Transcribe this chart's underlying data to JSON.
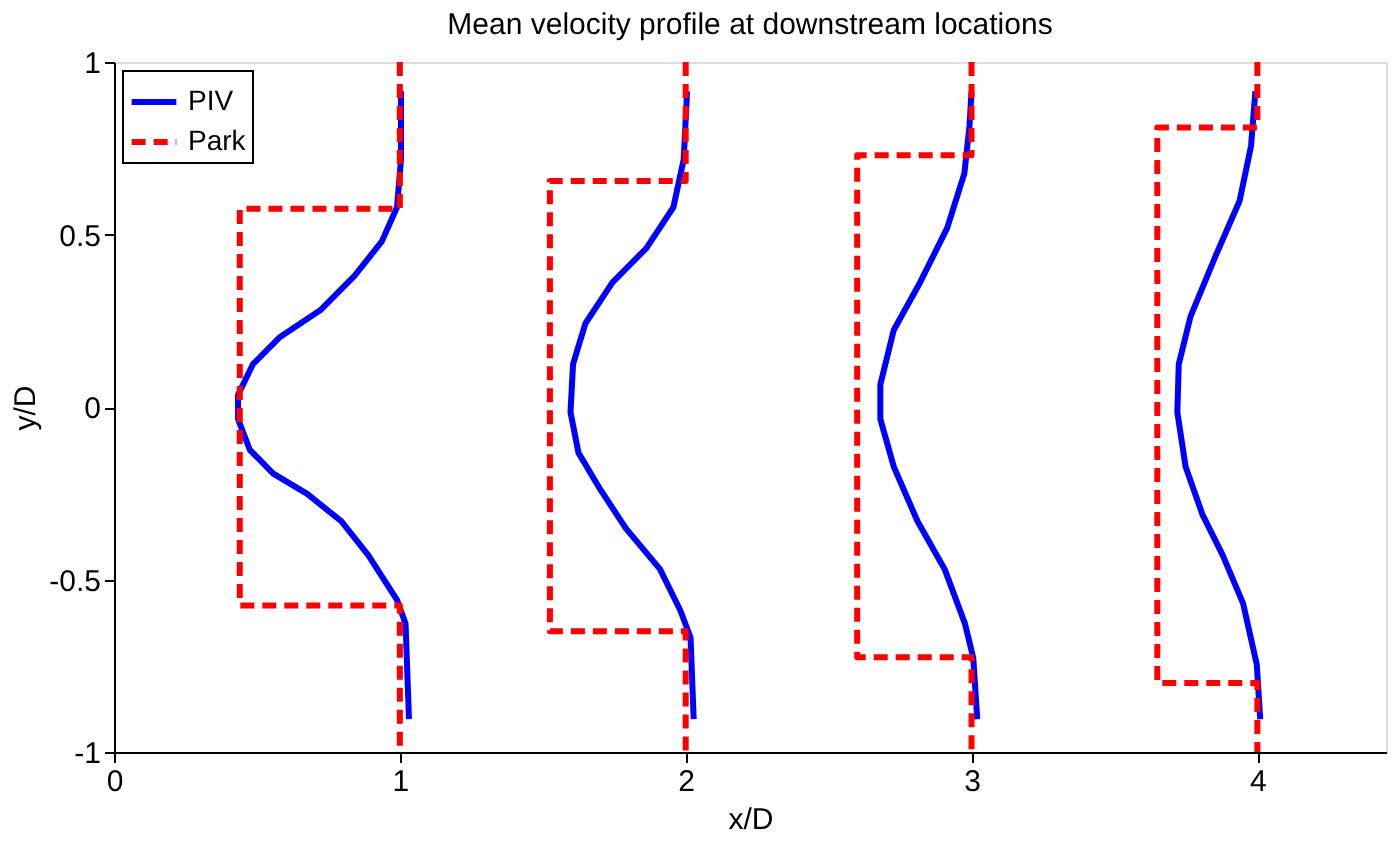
{
  "chart_data": {
    "type": "line",
    "title": "Mean velocity profile at downstream locations",
    "xlabel": "x/D",
    "ylabel": "y/D",
    "xlim": [
      0,
      4.45
    ],
    "ylim": [
      -1,
      1
    ],
    "xticks": [
      0,
      1,
      2,
      3,
      4
    ],
    "yticks": [
      -1,
      -0.5,
      0,
      0.5,
      1
    ],
    "grid": false,
    "legend": "top left",
    "marker": "none",
    "series": [
      {
        "name": "PIV",
        "color": "#0000ff",
        "line_style": "solid",
        "x": [
          1.032,
          1.02,
          0.99,
          0.89,
          0.795,
          0.676,
          0.557,
          0.475,
          0.434,
          0.434,
          0.486,
          0.581,
          0.724,
          0.842,
          0.937,
          0.99,
          1.004,
          1.004,
          null,
          2.028,
          2.017,
          1.981,
          1.91,
          1.79,
          1.696,
          1.625,
          1.597,
          1.606,
          1.649,
          1.744,
          1.862,
          1.957,
          1.993,
          2.005,
          null,
          3.02,
          3.006,
          2.977,
          2.906,
          2.811,
          2.728,
          2.681,
          2.681,
          2.728,
          2.82,
          2.915,
          2.975,
          2.993,
          3.0,
          null,
          4.01,
          3.998,
          3.95,
          3.879,
          3.808,
          3.749,
          3.72,
          3.725,
          3.766,
          3.855,
          3.938,
          3.978,
          3.993
        ],
        "values": [
          -0.905,
          -0.628,
          -0.559,
          -0.43,
          -0.331,
          -0.252,
          -0.193,
          -0.124,
          -0.035,
          0.035,
          0.124,
          0.203,
          0.282,
          0.381,
          0.48,
          0.579,
          0.717,
          0.915,
          null,
          -0.905,
          -0.668,
          -0.589,
          -0.47,
          -0.351,
          -0.232,
          -0.133,
          -0.015,
          0.124,
          0.242,
          0.361,
          0.46,
          0.579,
          0.717,
          0.915,
          null,
          -0.905,
          -0.727,
          -0.628,
          -0.47,
          -0.331,
          -0.173,
          -0.035,
          0.065,
          0.223,
          0.361,
          0.519,
          0.677,
          0.816,
          0.915,
          null,
          -0.905,
          -0.747,
          -0.569,
          -0.43,
          -0.312,
          -0.173,
          -0.015,
          0.124,
          0.262,
          0.44,
          0.598,
          0.757,
          0.915
        ]
      },
      {
        "name": "Park",
        "color": "#ff0000",
        "line_style": "dashed",
        "x": [
          1.0,
          1.0,
          0.44,
          0.44,
          1.0,
          1.0,
          null,
          2.0,
          2.0,
          1.525,
          1.525,
          2.0,
          2.0,
          null,
          3.0,
          3.0,
          2.6,
          2.6,
          3.0,
          3.0,
          null,
          4.0,
          4.0,
          3.65,
          3.65,
          4.0,
          4.0
        ],
        "values": [
          1,
          0.575,
          0.575,
          -0.575,
          -0.575,
          -1,
          null,
          1,
          0.655,
          0.655,
          -0.65,
          -0.65,
          -1,
          null,
          1,
          0.73,
          0.73,
          -0.725,
          -0.725,
          -1,
          null,
          1,
          0.81,
          0.81,
          -0.8,
          -0.8,
          -1
        ]
      }
    ]
  }
}
